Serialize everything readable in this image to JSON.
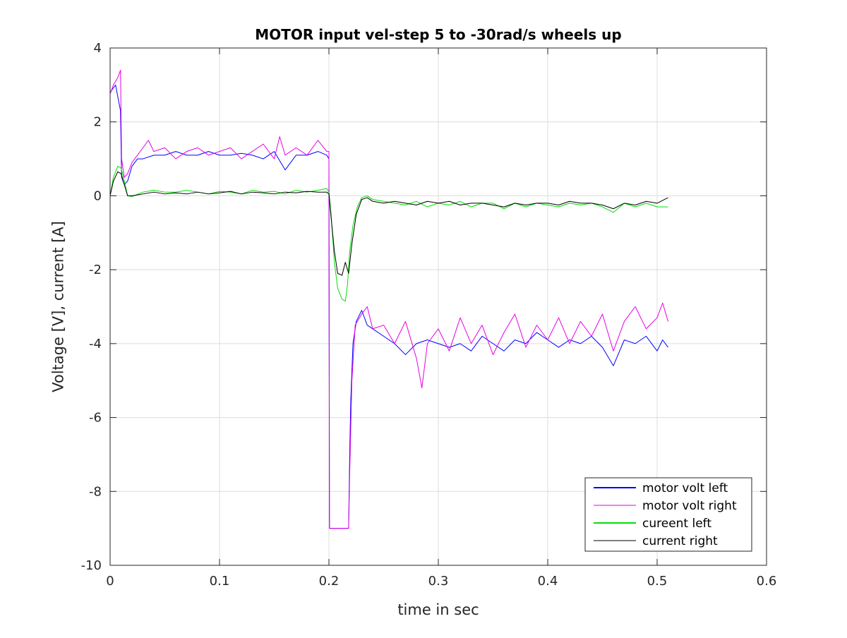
{
  "chart_data": {
    "type": "line",
    "title": "MOTOR input vel-step 5 to -30rad/s wheels up",
    "xlabel": "time in sec",
    "ylabel": "Voltage [V], current [A]",
    "xlim": [
      0,
      0.6
    ],
    "ylim": [
      -10,
      4
    ],
    "xticks": [
      0,
      0.1,
      0.2,
      0.3,
      0.4,
      0.5,
      0.6
    ],
    "xtick_labels": [
      "0",
      "0.1",
      "0.2",
      "0.3",
      "0.4",
      "0.5",
      "0.6"
    ],
    "yticks": [
      -10,
      -8,
      -6,
      -4,
      -2,
      0,
      2,
      4
    ],
    "ytick_labels": [
      "-10",
      "-8",
      "-6",
      "-4",
      "-2",
      "0",
      "2",
      "4"
    ],
    "grid": true,
    "legend_location": "bottom-right",
    "series": [
      {
        "name": "motor volt left",
        "color": "#0000ff",
        "points": [
          [
            0,
            2.8
          ],
          [
            0.005,
            3.0
          ],
          [
            0.0095,
            2.3
          ],
          [
            0.0105,
            0.5
          ],
          [
            0.013,
            0.3
          ],
          [
            0.016,
            0.4
          ],
          [
            0.02,
            0.8
          ],
          [
            0.025,
            1.0
          ],
          [
            0.03,
            1.0
          ],
          [
            0.04,
            1.1
          ],
          [
            0.05,
            1.1
          ],
          [
            0.06,
            1.2
          ],
          [
            0.07,
            1.1
          ],
          [
            0.08,
            1.1
          ],
          [
            0.09,
            1.2
          ],
          [
            0.1,
            1.1
          ],
          [
            0.11,
            1.1
          ],
          [
            0.12,
            1.15
          ],
          [
            0.13,
            1.1
          ],
          [
            0.14,
            1.0
          ],
          [
            0.15,
            1.2
          ],
          [
            0.16,
            0.7
          ],
          [
            0.17,
            1.1
          ],
          [
            0.18,
            1.1
          ],
          [
            0.19,
            1.2
          ],
          [
            0.198,
            1.1
          ],
          [
            0.2,
            1.0
          ],
          [
            0.2005,
            -9.0
          ],
          [
            0.218,
            -9.0
          ],
          [
            0.219,
            -7.0
          ],
          [
            0.22,
            -5.5
          ],
          [
            0.222,
            -4.0
          ],
          [
            0.225,
            -3.4
          ],
          [
            0.23,
            -3.1
          ],
          [
            0.235,
            -3.5
          ],
          [
            0.24,
            -3.6
          ],
          [
            0.25,
            -3.8
          ],
          [
            0.26,
            -4.0
          ],
          [
            0.27,
            -4.3
          ],
          [
            0.28,
            -4.0
          ],
          [
            0.29,
            -3.9
          ],
          [
            0.3,
            -4.0
          ],
          [
            0.31,
            -4.1
          ],
          [
            0.32,
            -4.0
          ],
          [
            0.33,
            -4.2
          ],
          [
            0.34,
            -3.8
          ],
          [
            0.35,
            -4.0
          ],
          [
            0.36,
            -4.2
          ],
          [
            0.37,
            -3.9
          ],
          [
            0.38,
            -4.0
          ],
          [
            0.39,
            -3.7
          ],
          [
            0.4,
            -3.9
          ],
          [
            0.41,
            -4.1
          ],
          [
            0.42,
            -3.9
          ],
          [
            0.43,
            -4.0
          ],
          [
            0.44,
            -3.8
          ],
          [
            0.45,
            -4.1
          ],
          [
            0.46,
            -4.6
          ],
          [
            0.47,
            -3.9
          ],
          [
            0.48,
            -4.0
          ],
          [
            0.49,
            -3.8
          ],
          [
            0.5,
            -4.2
          ],
          [
            0.505,
            -3.9
          ],
          [
            0.51,
            -4.1
          ]
        ]
      },
      {
        "name": "motor volt right",
        "color": "#e600e6",
        "points": [
          [
            0,
            2.75
          ],
          [
            0.003,
            3.0
          ],
          [
            0.007,
            3.2
          ],
          [
            0.0095,
            3.4
          ],
          [
            0.0105,
            1.0
          ],
          [
            0.013,
            0.5
          ],
          [
            0.016,
            0.6
          ],
          [
            0.02,
            0.9
          ],
          [
            0.025,
            1.1
          ],
          [
            0.03,
            1.3
          ],
          [
            0.035,
            1.5
          ],
          [
            0.04,
            1.2
          ],
          [
            0.05,
            1.3
          ],
          [
            0.06,
            1.0
          ],
          [
            0.07,
            1.2
          ],
          [
            0.08,
            1.3
          ],
          [
            0.09,
            1.1
          ],
          [
            0.1,
            1.2
          ],
          [
            0.11,
            1.3
          ],
          [
            0.12,
            1.0
          ],
          [
            0.13,
            1.2
          ],
          [
            0.14,
            1.4
          ],
          [
            0.15,
            1.0
          ],
          [
            0.155,
            1.6
          ],
          [
            0.16,
            1.1
          ],
          [
            0.17,
            1.3
          ],
          [
            0.18,
            1.1
          ],
          [
            0.19,
            1.5
          ],
          [
            0.198,
            1.2
          ],
          [
            0.2,
            1.2
          ],
          [
            0.2005,
            -9.0
          ],
          [
            0.218,
            -9.0
          ],
          [
            0.219,
            -7.5
          ],
          [
            0.221,
            -5.0
          ],
          [
            0.224,
            -3.5
          ],
          [
            0.23,
            -3.2
          ],
          [
            0.235,
            -3.0
          ],
          [
            0.24,
            -3.6
          ],
          [
            0.25,
            -3.5
          ],
          [
            0.26,
            -4.0
          ],
          [
            0.27,
            -3.4
          ],
          [
            0.28,
            -4.4
          ],
          [
            0.285,
            -5.2
          ],
          [
            0.29,
            -4.0
          ],
          [
            0.3,
            -3.6
          ],
          [
            0.31,
            -4.2
          ],
          [
            0.32,
            -3.3
          ],
          [
            0.33,
            -4.0
          ],
          [
            0.34,
            -3.5
          ],
          [
            0.35,
            -4.3
          ],
          [
            0.36,
            -3.7
          ],
          [
            0.37,
            -3.2
          ],
          [
            0.38,
            -4.1
          ],
          [
            0.39,
            -3.5
          ],
          [
            0.4,
            -3.9
          ],
          [
            0.41,
            -3.3
          ],
          [
            0.42,
            -4.0
          ],
          [
            0.43,
            -3.4
          ],
          [
            0.44,
            -3.8
          ],
          [
            0.45,
            -3.2
          ],
          [
            0.46,
            -4.2
          ],
          [
            0.47,
            -3.4
          ],
          [
            0.48,
            -3.0
          ],
          [
            0.49,
            -3.6
          ],
          [
            0.5,
            -3.3
          ],
          [
            0.505,
            -2.9
          ],
          [
            0.51,
            -3.4
          ]
        ]
      },
      {
        "name": "cureent left",
        "color": "#00e000",
        "points": [
          [
            0,
            0.0
          ],
          [
            0.003,
            0.5
          ],
          [
            0.007,
            0.8
          ],
          [
            0.01,
            0.75
          ],
          [
            0.013,
            0.4
          ],
          [
            0.016,
            0.0
          ],
          [
            0.02,
            -0.02
          ],
          [
            0.03,
            0.1
          ],
          [
            0.04,
            0.15
          ],
          [
            0.05,
            0.1
          ],
          [
            0.06,
            0.1
          ],
          [
            0.07,
            0.15
          ],
          [
            0.08,
            0.1
          ],
          [
            0.09,
            0.05
          ],
          [
            0.1,
            0.12
          ],
          [
            0.11,
            0.1
          ],
          [
            0.12,
            0.05
          ],
          [
            0.13,
            0.15
          ],
          [
            0.14,
            0.1
          ],
          [
            0.15,
            0.12
          ],
          [
            0.16,
            0.05
          ],
          [
            0.17,
            0.15
          ],
          [
            0.18,
            0.1
          ],
          [
            0.19,
            0.15
          ],
          [
            0.198,
            0.2
          ],
          [
            0.2,
            0.1
          ],
          [
            0.202,
            -0.5
          ],
          [
            0.205,
            -1.8
          ],
          [
            0.208,
            -2.5
          ],
          [
            0.212,
            -2.8
          ],
          [
            0.215,
            -2.85
          ],
          [
            0.217,
            -2.4
          ],
          [
            0.219,
            -1.5
          ],
          [
            0.222,
            -0.8
          ],
          [
            0.226,
            -0.3
          ],
          [
            0.23,
            -0.05
          ],
          [
            0.235,
            0.0
          ],
          [
            0.24,
            -0.1
          ],
          [
            0.25,
            -0.15
          ],
          [
            0.26,
            -0.2
          ],
          [
            0.27,
            -0.25
          ],
          [
            0.28,
            -0.15
          ],
          [
            0.29,
            -0.3
          ],
          [
            0.3,
            -0.2
          ],
          [
            0.31,
            -0.25
          ],
          [
            0.32,
            -0.15
          ],
          [
            0.33,
            -0.3
          ],
          [
            0.34,
            -0.2
          ],
          [
            0.35,
            -0.2
          ],
          [
            0.36,
            -0.35
          ],
          [
            0.37,
            -0.2
          ],
          [
            0.38,
            -0.3
          ],
          [
            0.39,
            -0.2
          ],
          [
            0.4,
            -0.25
          ],
          [
            0.41,
            -0.3
          ],
          [
            0.42,
            -0.2
          ],
          [
            0.43,
            -0.25
          ],
          [
            0.44,
            -0.2
          ],
          [
            0.45,
            -0.3
          ],
          [
            0.46,
            -0.45
          ],
          [
            0.47,
            -0.2
          ],
          [
            0.48,
            -0.3
          ],
          [
            0.49,
            -0.2
          ],
          [
            0.5,
            -0.3
          ],
          [
            0.51,
            -0.3
          ]
        ]
      },
      {
        "name": "current right",
        "color": "#000000",
        "points": [
          [
            0,
            0.0
          ],
          [
            0.003,
            0.4
          ],
          [
            0.007,
            0.65
          ],
          [
            0.01,
            0.6
          ],
          [
            0.013,
            0.3
          ],
          [
            0.016,
            0.0
          ],
          [
            0.02,
            0.0
          ],
          [
            0.03,
            0.05
          ],
          [
            0.04,
            0.1
          ],
          [
            0.05,
            0.05
          ],
          [
            0.06,
            0.08
          ],
          [
            0.07,
            0.05
          ],
          [
            0.08,
            0.1
          ],
          [
            0.09,
            0.05
          ],
          [
            0.1,
            0.08
          ],
          [
            0.11,
            0.12
          ],
          [
            0.12,
            0.05
          ],
          [
            0.13,
            0.1
          ],
          [
            0.14,
            0.08
          ],
          [
            0.15,
            0.05
          ],
          [
            0.16,
            0.1
          ],
          [
            0.17,
            0.08
          ],
          [
            0.18,
            0.12
          ],
          [
            0.19,
            0.1
          ],
          [
            0.198,
            0.1
          ],
          [
            0.2,
            0.05
          ],
          [
            0.202,
            -0.6
          ],
          [
            0.205,
            -1.5
          ],
          [
            0.208,
            -2.1
          ],
          [
            0.212,
            -2.15
          ],
          [
            0.215,
            -1.8
          ],
          [
            0.218,
            -2.1
          ],
          [
            0.221,
            -1.3
          ],
          [
            0.225,
            -0.5
          ],
          [
            0.23,
            -0.1
          ],
          [
            0.235,
            -0.05
          ],
          [
            0.24,
            -0.15
          ],
          [
            0.25,
            -0.2
          ],
          [
            0.26,
            -0.15
          ],
          [
            0.27,
            -0.2
          ],
          [
            0.28,
            -0.25
          ],
          [
            0.29,
            -0.15
          ],
          [
            0.3,
            -0.2
          ],
          [
            0.31,
            -0.15
          ],
          [
            0.32,
            -0.25
          ],
          [
            0.33,
            -0.2
          ],
          [
            0.34,
            -0.2
          ],
          [
            0.35,
            -0.25
          ],
          [
            0.36,
            -0.3
          ],
          [
            0.37,
            -0.2
          ],
          [
            0.38,
            -0.25
          ],
          [
            0.39,
            -0.2
          ],
          [
            0.4,
            -0.2
          ],
          [
            0.41,
            -0.25
          ],
          [
            0.42,
            -0.15
          ],
          [
            0.43,
            -0.2
          ],
          [
            0.44,
            -0.2
          ],
          [
            0.45,
            -0.25
          ],
          [
            0.46,
            -0.35
          ],
          [
            0.47,
            -0.2
          ],
          [
            0.48,
            -0.25
          ],
          [
            0.49,
            -0.15
          ],
          [
            0.5,
            -0.2
          ],
          [
            0.51,
            -0.05
          ]
        ]
      }
    ]
  }
}
